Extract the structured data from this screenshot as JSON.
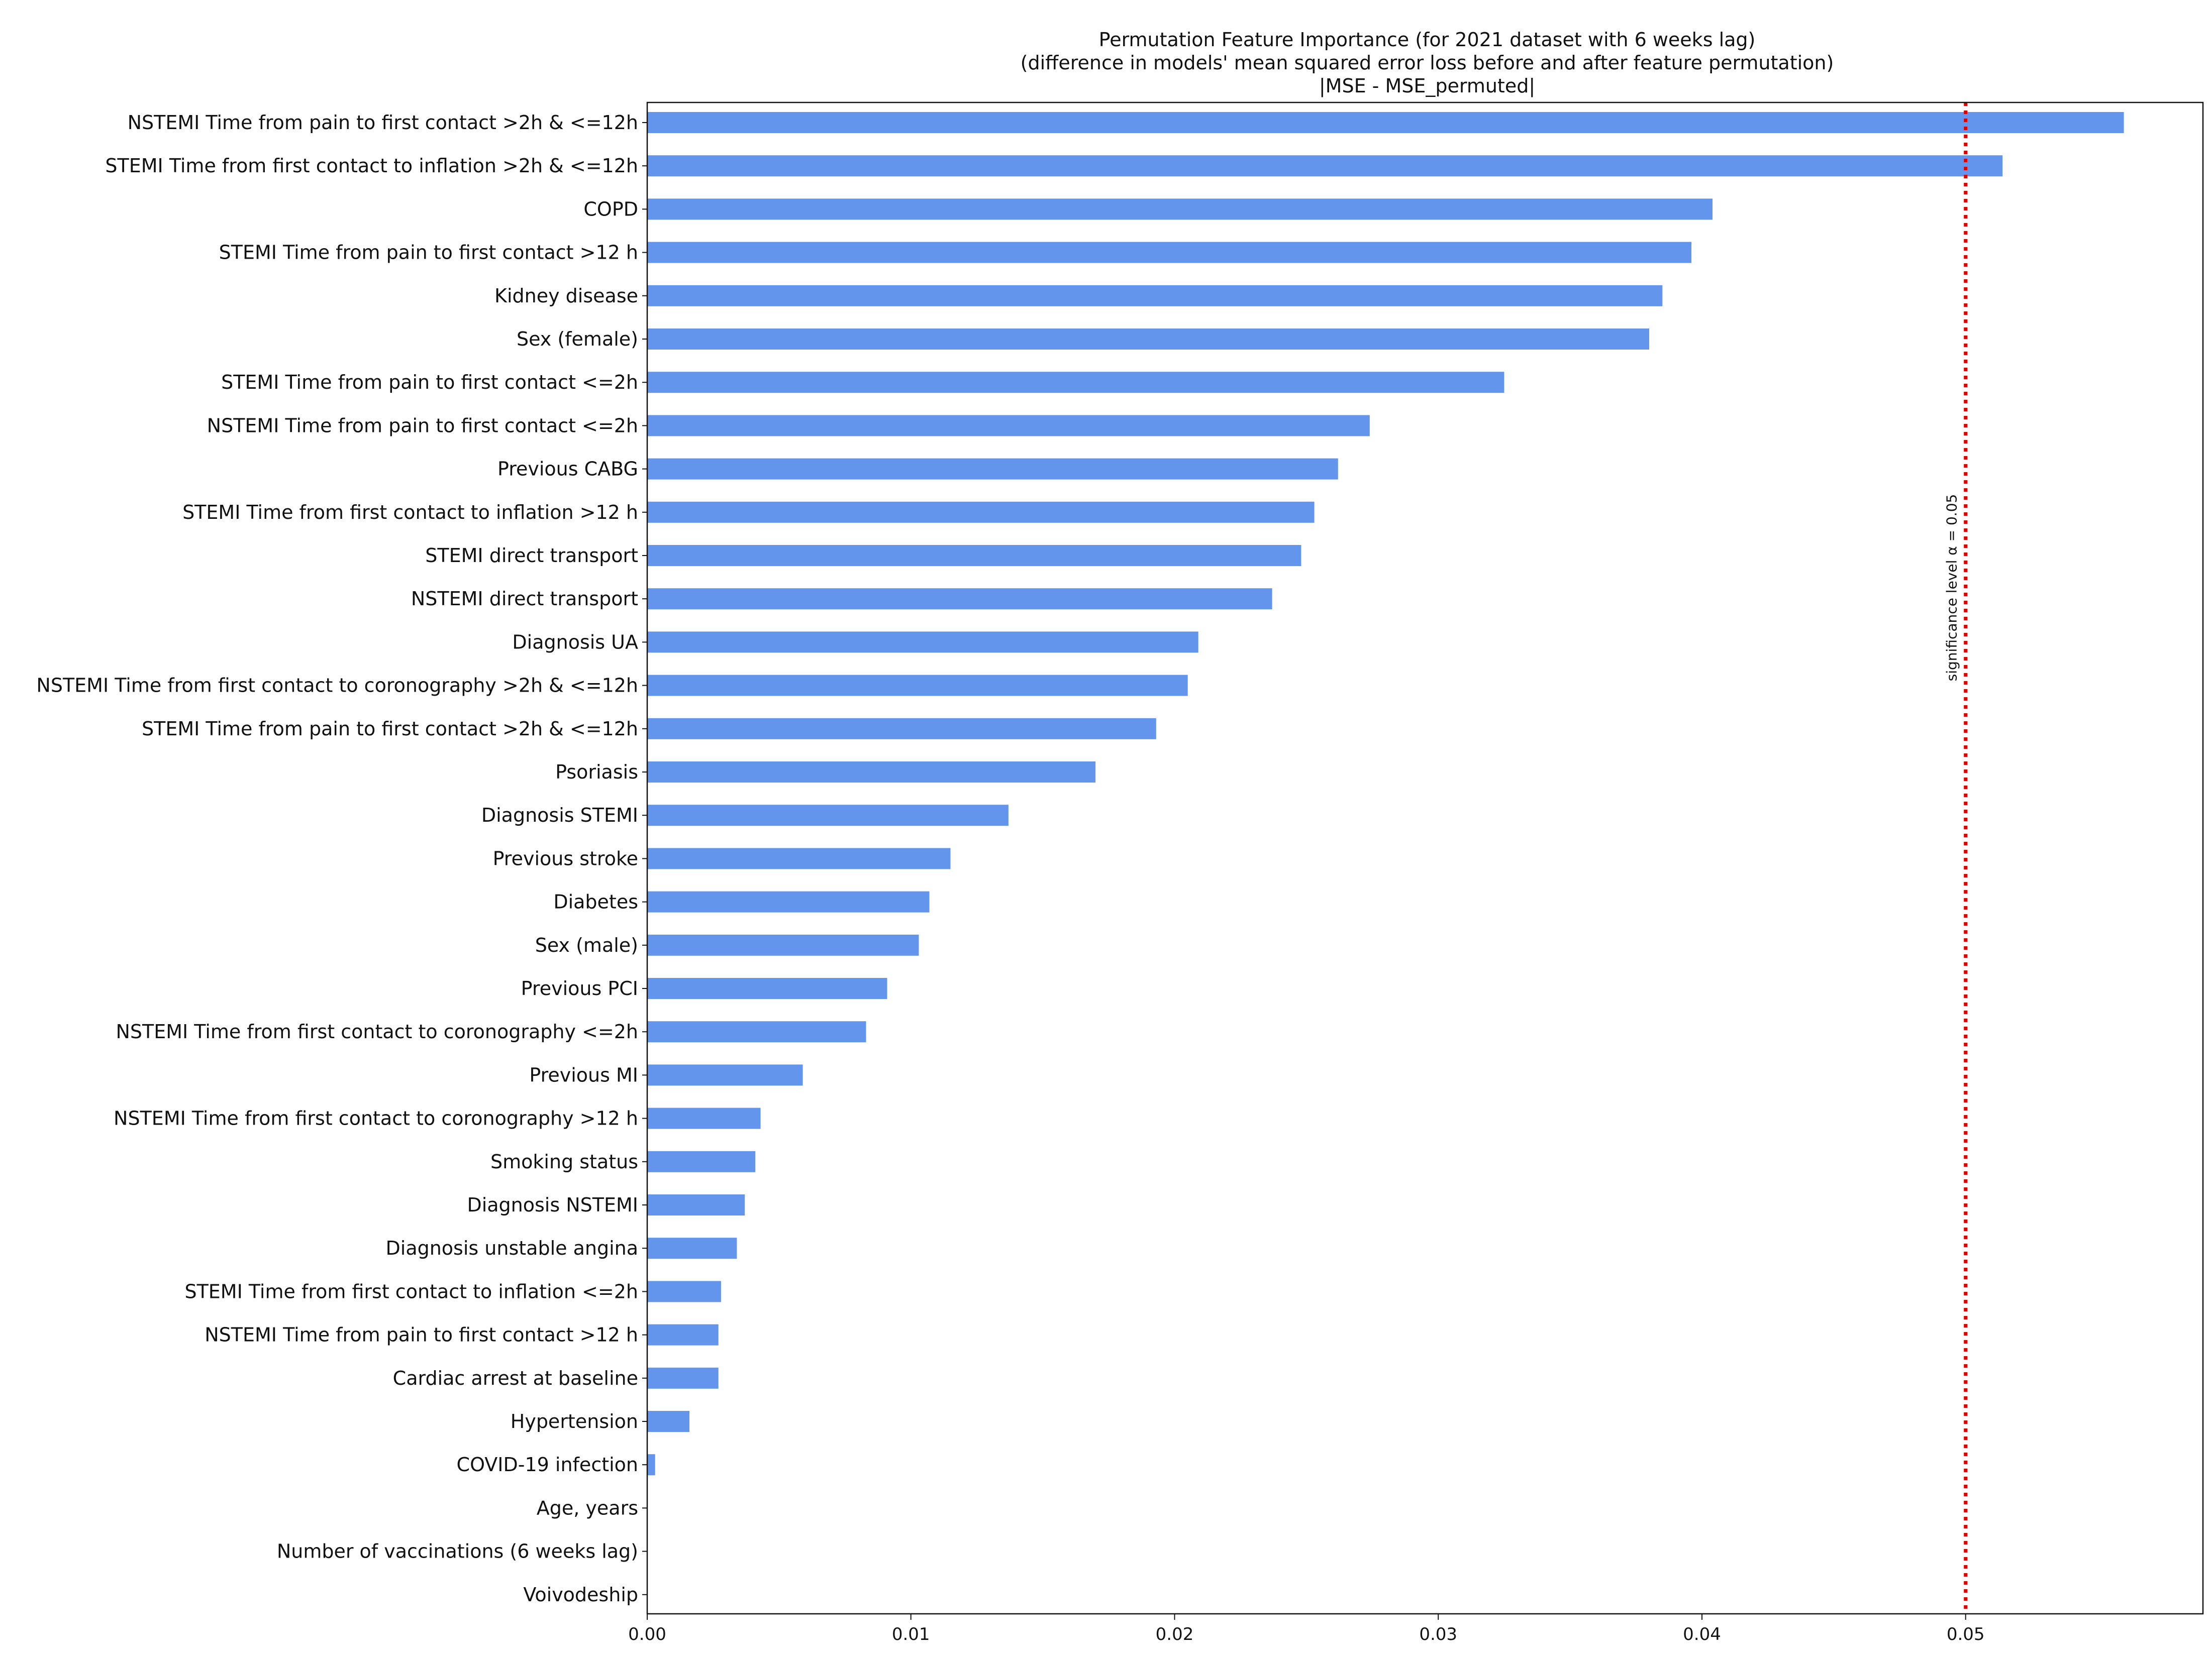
{
  "chart_data": {
    "type": "bar",
    "orientation": "horizontal",
    "title_lines": [
      "Permutation Feature Importance (for 2021 dataset with 6 weeks lag)",
      "(difference in models' mean squared error loss before and after feature permutation)",
      "|MSE - MSE_permuted|"
    ],
    "xlabel": "",
    "ylabel": "",
    "xlim": [
      0,
      0.059
    ],
    "xticks": [
      0.0,
      0.01,
      0.02,
      0.03,
      0.04,
      0.05
    ],
    "xtick_labels": [
      "0.00",
      "0.01",
      "0.02",
      "0.03",
      "0.04",
      "0.05"
    ],
    "categories": [
      "NSTEMI Time from pain to first contact >2h & <=12h",
      "STEMI Time from first contact to inflation >2h & <=12h",
      "COPD",
      "STEMI Time from pain to first contact >12 h",
      "Kidney disease",
      "Sex (female)",
      "STEMI Time from pain to first contact <=2h",
      "NSTEMI Time from pain to first contact <=2h",
      "Previous CABG",
      "STEMI Time from first contact to inflation >12 h",
      "STEMI direct transport",
      "NSTEMI direct transport",
      "Diagnosis UA",
      "NSTEMI Time from first contact to coronography >2h & <=12h",
      "STEMI Time from pain to first contact >2h & <=12h",
      "Psoriasis",
      "Diagnosis STEMI",
      "Previous stroke",
      "Diabetes",
      "Sex (male)",
      "Previous PCI",
      "NSTEMI Time from first contact to coronography <=2h",
      "Previous MI",
      "NSTEMI Time from first contact to coronography >12 h",
      "Smoking status",
      "Diagnosis NSTEMI",
      "Diagnosis unstable angina",
      "STEMI Time from first contact to inflation <=2h",
      "NSTEMI Time from pain to first contact >12 h",
      "Cardiac arrest at baseline",
      "Hypertension",
      "COVID-19 infection",
      "Age, years",
      "Number of vaccinations (6 weeks lag)",
      "Voivodeship"
    ],
    "values": [
      0.056,
      0.0514,
      0.0404,
      0.0396,
      0.0385,
      0.038,
      0.0325,
      0.0274,
      0.0262,
      0.0253,
      0.0248,
      0.0237,
      0.0209,
      0.0205,
      0.0193,
      0.017,
      0.0137,
      0.0115,
      0.0107,
      0.0103,
      0.0091,
      0.0083,
      0.0059,
      0.0043,
      0.0041,
      0.0037,
      0.0034,
      0.0028,
      0.0027,
      0.0027,
      0.0016,
      0.0003,
      0.0,
      0.0,
      0.0
    ],
    "bar_color": "#6495ED",
    "threshold": {
      "value": 0.05,
      "label": "significance level α = 0.05",
      "color": "#e00000",
      "style": "dotted"
    },
    "grid": false,
    "legend": "none"
  }
}
